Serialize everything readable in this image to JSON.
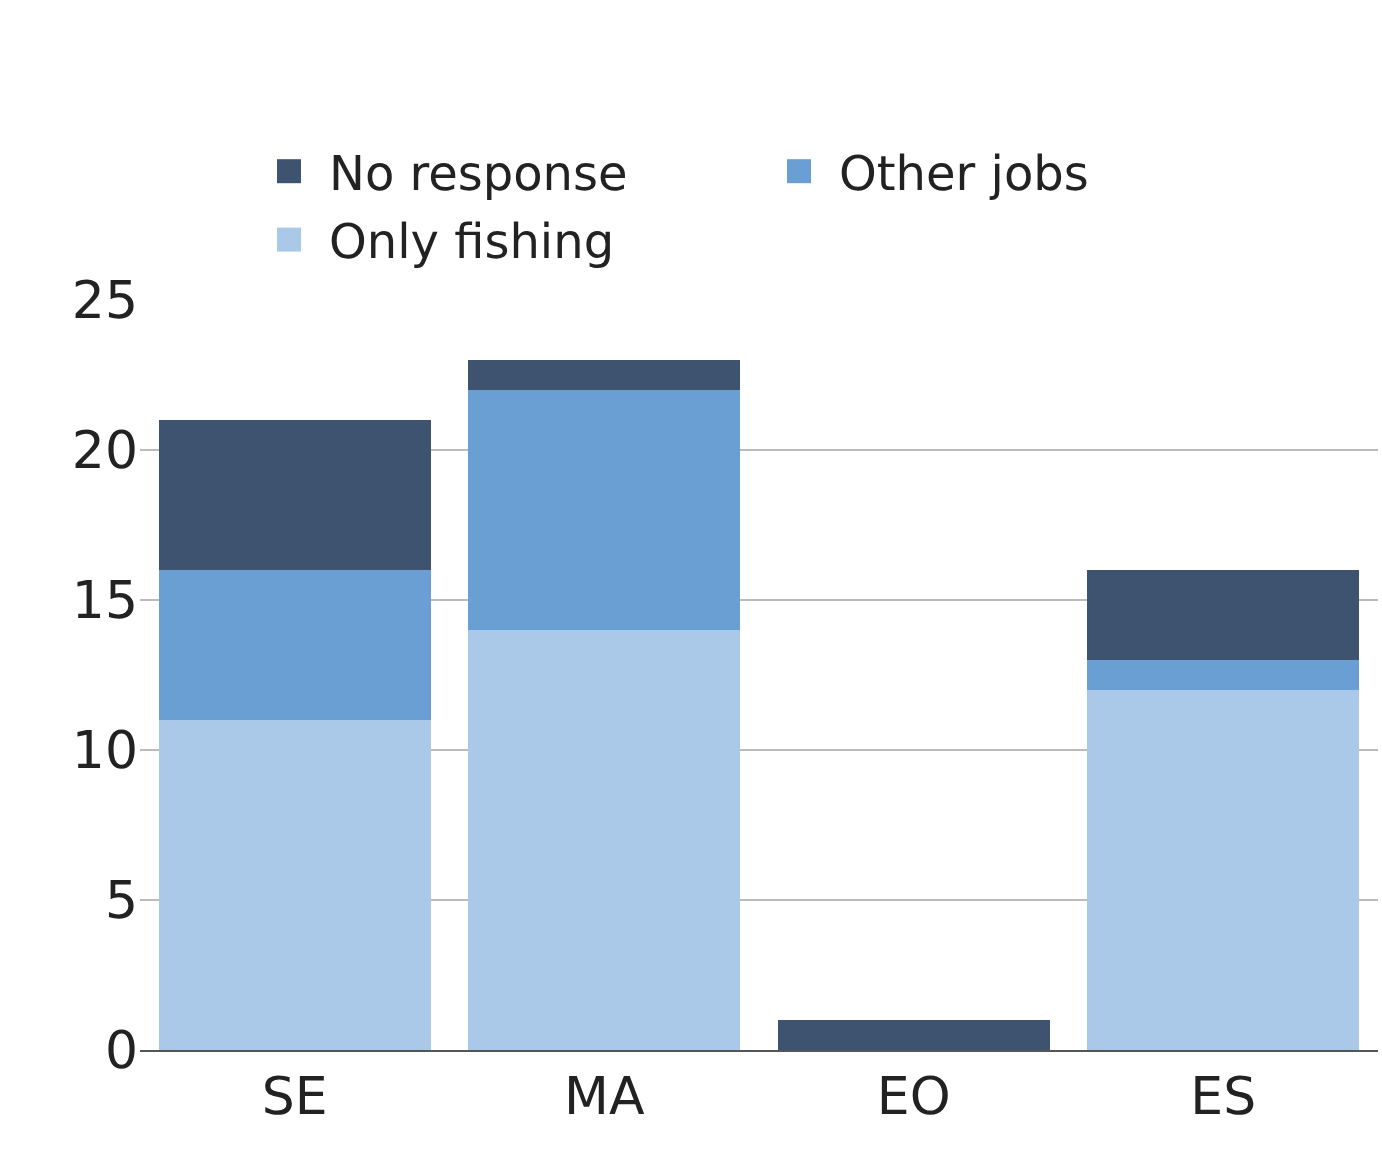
{
  "chart_data": {
    "type": "bar",
    "stacked": true,
    "categories": [
      "SE",
      "MA",
      "EO",
      "ES"
    ],
    "series": [
      {
        "name": "Only fishing",
        "color": "#aac8e8",
        "values": [
          11,
          14,
          0,
          12
        ]
      },
      {
        "name": "Other jobs",
        "color": "#6a9fd4",
        "values": [
          5,
          8,
          0,
          1
        ]
      },
      {
        "name": "No response",
        "color": "#3d536f",
        "values": [
          5,
          1,
          1,
          3
        ]
      }
    ],
    "ylim": [
      0,
      25
    ],
    "yticks": [
      0,
      5,
      10,
      15,
      20,
      25
    ],
    "grid": "y",
    "legend": "top"
  }
}
